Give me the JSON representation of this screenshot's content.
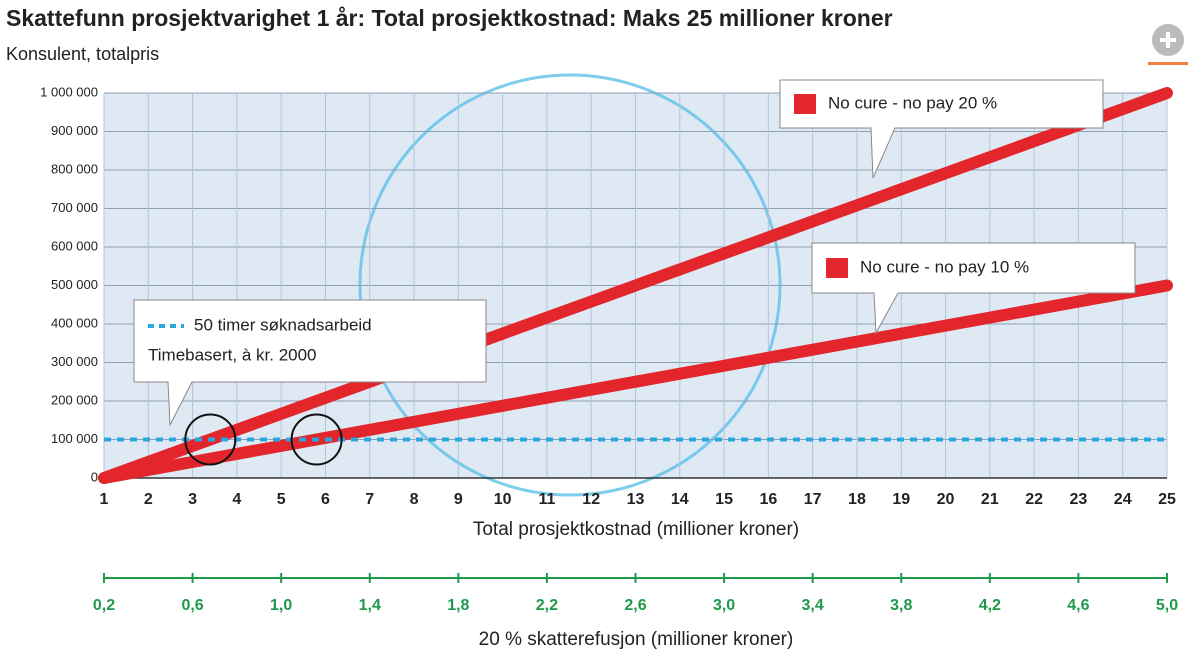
{
  "chart_data": {
    "type": "line",
    "title": "Skattefunn prosjektvarighet 1 år: Total prosjektkostnad: Maks 25 millioner kroner",
    "subtitle": "Konsulent, totalpris",
    "x_label": "Total prosjektkostnad (millioner kroner)",
    "x2_label": "20 % skatterefusjon (millioner kroner)",
    "xlim": [
      1,
      25
    ],
    "xticks": [
      1,
      2,
      3,
      4,
      5,
      6,
      7,
      8,
      9,
      10,
      11,
      12,
      13,
      14,
      15,
      16,
      17,
      18,
      19,
      20,
      21,
      22,
      23,
      24,
      25
    ],
    "ylim": [
      0,
      1000000
    ],
    "yticks": [
      0,
      {
        "value": 100000,
        "label": "100 000"
      },
      {
        "value": 200000,
        "label": "200 000"
      },
      {
        "value": 300000,
        "label": "300 000"
      },
      {
        "value": 400000,
        "label": "400 000"
      },
      {
        "value": 500000,
        "label": "500 000"
      },
      {
        "value": 600000,
        "label": "600 000"
      },
      {
        "value": 700000,
        "label": "700 000"
      },
      {
        "value": 800000,
        "label": "800 000"
      },
      {
        "value": 900000,
        "label": "900 000"
      },
      {
        "value": 1000000,
        "label": "1 000 000"
      }
    ],
    "x2lim": [
      0.2,
      5.0
    ],
    "x2ticks": [
      {
        "value": 0.2,
        "label": "0,2"
      },
      {
        "value": 0.6,
        "label": "0,6"
      },
      {
        "value": 1.0,
        "label": "1,0"
      },
      {
        "value": 1.4,
        "label": "1,4"
      },
      {
        "value": 1.8,
        "label": "1,8"
      },
      {
        "value": 2.2,
        "label": "2,2"
      },
      {
        "value": 2.6,
        "label": "2,6"
      },
      {
        "value": 3.0,
        "label": "3,0"
      },
      {
        "value": 3.4,
        "label": "3,4"
      },
      {
        "value": 3.8,
        "label": "3,8"
      },
      {
        "value": 4.2,
        "label": "4,2"
      },
      {
        "value": 4.6,
        "label": "4,6"
      },
      {
        "value": 5.0,
        "label": "5,0"
      }
    ],
    "x2_color": "#1f9a4a",
    "grid": true,
    "series": [
      {
        "name": "No cure - no pay 20 %",
        "color": "#e3262c",
        "x": [
          1,
          25
        ],
        "values": [
          0,
          1000000
        ]
      },
      {
        "name": "No cure - no pay 10 %",
        "color": "#e3262c",
        "x": [
          1,
          25
        ],
        "values": [
          0,
          500000
        ]
      },
      {
        "name": "50 timer søknadsarbeid",
        "color": "#29a8e0",
        "style": "dashed",
        "x": [
          1,
          25
        ],
        "values": [
          100000,
          100000
        ],
        "annotation": "Timebasert, à kr. 2000"
      }
    ]
  }
}
